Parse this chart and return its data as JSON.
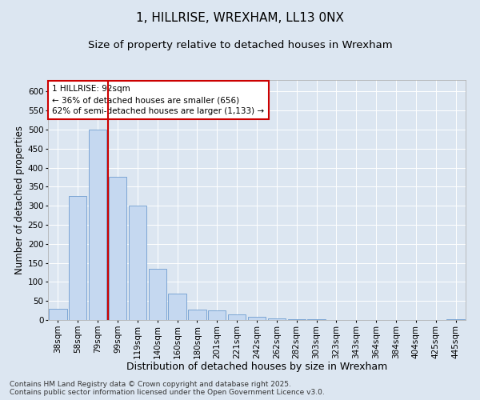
{
  "title1": "1, HILLRISE, WREXHAM, LL13 0NX",
  "title2": "Size of property relative to detached houses in Wrexham",
  "xlabel": "Distribution of detached houses by size in Wrexham",
  "ylabel": "Number of detached properties",
  "categories": [
    "38sqm",
    "58sqm",
    "79sqm",
    "99sqm",
    "119sqm",
    "140sqm",
    "160sqm",
    "180sqm",
    "201sqm",
    "221sqm",
    "242sqm",
    "262sqm",
    "282sqm",
    "303sqm",
    "323sqm",
    "343sqm",
    "364sqm",
    "384sqm",
    "404sqm",
    "425sqm",
    "445sqm"
  ],
  "values": [
    30,
    325,
    500,
    375,
    300,
    135,
    70,
    28,
    25,
    15,
    8,
    4,
    3,
    3,
    1,
    1,
    1,
    0,
    0,
    0,
    2
  ],
  "bar_color": "#c5d8f0",
  "bar_edge_color": "#5b8fc9",
  "background_color": "#dce6f1",
  "grid_color": "#ffffff",
  "ylim": [
    0,
    630
  ],
  "yticks": [
    0,
    50,
    100,
    150,
    200,
    250,
    300,
    350,
    400,
    450,
    500,
    550,
    600
  ],
  "property_label": "1 HILLRISE: 92sqm",
  "annotation_line1": "← 36% of detached houses are smaller (656)",
  "annotation_line2": "62% of semi-detached houses are larger (1,133) →",
  "annotation_box_color": "#ffffff",
  "annotation_box_edge": "#cc0000",
  "red_line_color": "#cc0000",
  "footnote": "Contains HM Land Registry data © Crown copyright and database right 2025.\nContains public sector information licensed under the Open Government Licence v3.0.",
  "title_fontsize": 11,
  "subtitle_fontsize": 9.5,
  "xlabel_fontsize": 9,
  "ylabel_fontsize": 8.5,
  "tick_fontsize": 7.5,
  "annotation_fontsize": 7.5,
  "footnote_fontsize": 6.5,
  "red_line_x": 2.5
}
